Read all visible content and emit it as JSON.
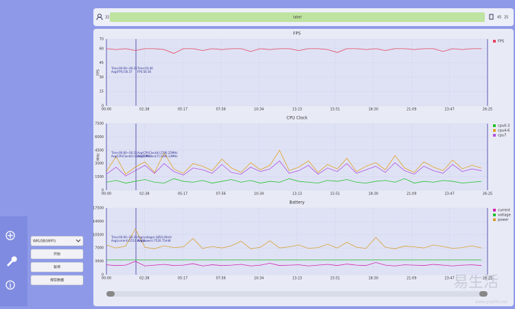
{
  "ui": {
    "top_left": "32",
    "label": "label",
    "top_right": [
      "45",
      "25"
    ],
    "dropdown": "WKUSB(WIFI)",
    "buttons": [
      "开始",
      "暂停",
      "保存数据"
    ],
    "watermark": "易生活",
    "watermark_url": "www.ysslife.net"
  },
  "chart_data": [
    {
      "type": "line",
      "title": "FPS",
      "y_label": "FPS",
      "annotations": [
        "Time:00:00~26:25",
        "Avg(FPS):56.37",
        "Time:03:40",
        "FPS:56.56"
      ],
      "xlim": [
        0,
        1585
      ],
      "xticks": [
        {
          "value": 0,
          "label": "00:00"
        },
        {
          "value": 158,
          "label": "02:38"
        },
        {
          "value": 317,
          "label": "05:17"
        },
        {
          "value": 476,
          "label": "07:56"
        },
        {
          "value": 634,
          "label": "10:34"
        },
        {
          "value": 793,
          "label": "13:13"
        },
        {
          "value": 951,
          "label": "15:51"
        },
        {
          "value": 1110,
          "label": "18:30"
        },
        {
          "value": 1269,
          "label": "21:09"
        },
        {
          "value": 1427,
          "label": "23:47"
        },
        {
          "value": 1585,
          "label": "26:25"
        }
      ],
      "ylim": [
        0,
        70
      ],
      "yticks": [
        0,
        15,
        30,
        45,
        60,
        70
      ],
      "grid": true,
      "x": [
        0,
        40,
        80,
        120,
        160,
        200,
        240,
        280,
        320,
        360,
        400,
        440,
        480,
        520,
        560,
        600,
        640,
        680,
        720,
        760,
        800,
        840,
        880,
        920,
        960,
        1000,
        1040,
        1080,
        1120,
        1160,
        1200,
        1240,
        1280,
        1320,
        1360,
        1400,
        1440,
        1480,
        1520,
        1560
      ],
      "series": [
        {
          "name": "FPS",
          "color": "#e8405a",
          "values": [
            60,
            59,
            60,
            58,
            60,
            60,
            59,
            55,
            60,
            60,
            58,
            60,
            59,
            60,
            60,
            57,
            60,
            59,
            60,
            60,
            58,
            60,
            60,
            59,
            56,
            60,
            60,
            59,
            60,
            58,
            60,
            60,
            59,
            60,
            60,
            57,
            60,
            59,
            60,
            60
          ]
        }
      ]
    },
    {
      "type": "line",
      "title": "CPU Clock",
      "y_label": "MHz",
      "annotations": [
        "Time:00:00~26:25",
        "Avg(CPUClock0):1220.51MHz",
        "Avg(CPUClock4):2706.25MHz",
        "Avg(CPUClock7):2300.13MHz"
      ],
      "xlim": [
        0,
        1585
      ],
      "xticks": [
        {
          "value": 0,
          "label": "00:00"
        },
        {
          "value": 158,
          "label": "02:38"
        },
        {
          "value": 317,
          "label": "05:17"
        },
        {
          "value": 476,
          "label": "07:56"
        },
        {
          "value": 634,
          "label": "10:34"
        },
        {
          "value": 793,
          "label": "13:13"
        },
        {
          "value": 951,
          "label": "15:51"
        },
        {
          "value": 1110,
          "label": "18:30"
        },
        {
          "value": 1269,
          "label": "21:09"
        },
        {
          "value": 1427,
          "label": "23:47"
        },
        {
          "value": 1585,
          "label": "26:25"
        }
      ],
      "ylim": [
        0,
        7500
      ],
      "yticks": [
        0,
        1500,
        3000,
        4500,
        6000,
        7500
      ],
      "grid": true,
      "x": [
        0,
        40,
        80,
        120,
        160,
        200,
        240,
        280,
        320,
        360,
        400,
        440,
        480,
        520,
        560,
        600,
        640,
        680,
        720,
        760,
        800,
        840,
        880,
        920,
        960,
        1000,
        1040,
        1080,
        1120,
        1160,
        1200,
        1240,
        1280,
        1320,
        1360,
        1400,
        1440,
        1480,
        1520,
        1560
      ],
      "series": [
        {
          "name": "cpu0-3",
          "color": "#22c02a",
          "values": [
            900,
            1100,
            800,
            1000,
            1200,
            900,
            800,
            1300,
            1000,
            900,
            1100,
            800,
            1000,
            1200,
            900,
            1100,
            800,
            1000,
            900,
            1300,
            1000,
            900,
            800,
            1100,
            1000,
            1200,
            900,
            800,
            1000,
            1100,
            900,
            1300,
            800,
            1000,
            900,
            1100,
            1000,
            800,
            900,
            1000
          ]
        },
        {
          "name": "cpu4-6",
          "color": "#e0a020",
          "values": [
            2100,
            3800,
            1800,
            2600,
            3200,
            2000,
            4200,
            2400,
            1900,
            3000,
            2700,
            2200,
            3500,
            2500,
            2000,
            3100,
            2300,
            2800,
            4500,
            2200,
            2600,
            3300,
            2000,
            2900,
            2400,
            3600,
            2100,
            2700,
            3100,
            2300,
            3900,
            2500,
            2000,
            3200,
            2600,
            2200,
            3400,
            2400,
            2800,
            2500
          ]
        },
        {
          "name": "cpu7",
          "color": "#b050e0",
          "values": [
            1800,
            2600,
            1600,
            2200,
            2800,
            1900,
            3000,
            2100,
            1700,
            2500,
            2300,
            1900,
            2900,
            2000,
            1800,
            2600,
            2100,
            2400,
            3300,
            1900,
            2200,
            2800,
            1800,
            2500,
            2100,
            3000,
            1900,
            2300,
            2700,
            2000,
            3100,
            2200,
            1800,
            2700,
            2200,
            1900,
            2900,
            2100,
            2400,
            2200
          ]
        }
      ]
    },
    {
      "type": "line",
      "title": "Battery",
      "annotations": [
        "Time:00:00~26:25",
        "Avg(current):2510.00mA",
        "Avg(voltage):3850.00mV",
        "Avg(power):7520.75mW"
      ],
      "xlim": [
        0,
        1585
      ],
      "xticks": [
        {
          "value": 0,
          "label": "00:00"
        },
        {
          "value": 158,
          "label": "02:38"
        },
        {
          "value": 317,
          "label": "05:17"
        },
        {
          "value": 476,
          "label": "07:56"
        },
        {
          "value": 634,
          "label": "10:34"
        },
        {
          "value": 793,
          "label": "13:13"
        },
        {
          "value": 951,
          "label": "15:51"
        },
        {
          "value": 1110,
          "label": "18:30"
        },
        {
          "value": 1269,
          "label": "21:09"
        },
        {
          "value": 1427,
          "label": "23:47"
        },
        {
          "value": 1585,
          "label": "26:25"
        }
      ],
      "ylim": [
        0,
        17500
      ],
      "yticks": [
        0,
        3500,
        7000,
        10500,
        14000,
        17500
      ],
      "grid": true,
      "x": [
        0,
        40,
        80,
        120,
        160,
        200,
        240,
        280,
        320,
        360,
        400,
        440,
        480,
        520,
        560,
        600,
        640,
        680,
        720,
        760,
        800,
        840,
        880,
        920,
        960,
        1000,
        1040,
        1080,
        1120,
        1160,
        1200,
        1240,
        1280,
        1320,
        1360,
        1400,
        1440,
        1480,
        1520,
        1560
      ],
      "series": [
        {
          "name": "current",
          "color": "#d020b0",
          "values": [
            2600,
            2400,
            2500,
            3500,
            2300,
            2500,
            2700,
            2400,
            2500,
            2900,
            2300,
            2600,
            2400,
            2500,
            2700,
            2300,
            2500,
            3000,
            2400,
            2500,
            2600,
            2300,
            2500,
            2700,
            2400,
            2800,
            2500,
            2400,
            3200,
            2500,
            2300,
            2600,
            2500,
            2400,
            2700,
            2500,
            2300,
            2500,
            2600,
            2400
          ]
        },
        {
          "name": "voltage",
          "color": "#22c02a",
          "values": [
            3850,
            3850,
            3850,
            3850,
            3850,
            3850,
            3850,
            3850,
            3850,
            3850,
            3850,
            3850,
            3850,
            3850,
            3850,
            3850,
            3850,
            3850,
            3850,
            3850,
            3850,
            3850,
            3850,
            3850,
            3850,
            3850,
            3850,
            3850,
            3850,
            3850,
            3850,
            3850,
            3850,
            3850,
            3850,
            3850,
            3850,
            3850,
            3850,
            3850
          ]
        },
        {
          "name": "power",
          "color": "#d8a030",
          "values": [
            7800,
            7000,
            7500,
            12000,
            7200,
            6800,
            7600,
            7100,
            7300,
            9500,
            6900,
            7400,
            7000,
            7600,
            8800,
            6800,
            7200,
            8900,
            7000,
            7300,
            7800,
            6900,
            7100,
            8000,
            7000,
            8500,
            7200,
            6900,
            9800,
            7200,
            6800,
            7500,
            7300,
            7000,
            7800,
            7400,
            6900,
            7100,
            7600,
            7000
          ]
        }
      ]
    }
  ]
}
